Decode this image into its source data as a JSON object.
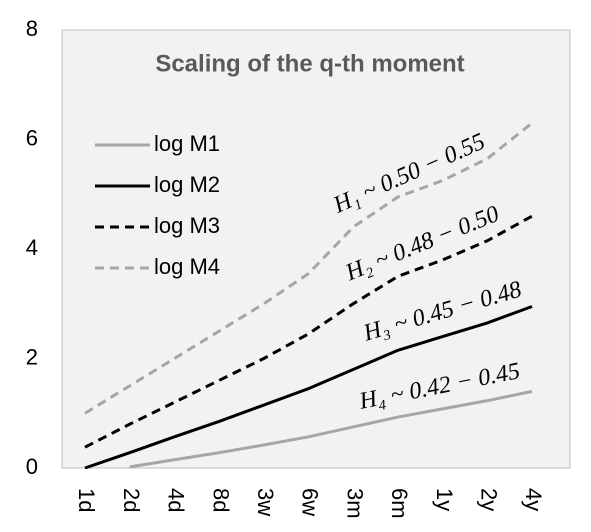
{
  "chart_data": {
    "type": "line",
    "title": "Scaling of the q-th moment",
    "categories": [
      "1d",
      "2d",
      "4d",
      "8d",
      "3w",
      "6w",
      "3m",
      "6m",
      "1y",
      "2y",
      "4y"
    ],
    "series": [
      {
        "name": "log M1",
        "color": "#a6a6a6",
        "line_style": "solid",
        "values": [
          null,
          0.02,
          0.15,
          0.28,
          0.42,
          0.57,
          0.75,
          0.93,
          1.08,
          1.23,
          1.4
        ]
      },
      {
        "name": "log M2",
        "color": "#000000",
        "line_style": "solid",
        "values": [
          0,
          0.28,
          0.57,
          0.85,
          1.15,
          1.45,
          1.8,
          2.15,
          2.4,
          2.65,
          2.95
        ]
      },
      {
        "name": "log M3",
        "color": "#000000",
        "line_style": "dashed",
        "values": [
          0.38,
          0.8,
          1.2,
          1.6,
          2.0,
          2.45,
          3.0,
          3.5,
          3.8,
          4.15,
          4.6
        ]
      },
      {
        "name": "log M4",
        "color": "#a6a6a6",
        "line_style": "dashed",
        "values": [
          1.0,
          1.5,
          2.0,
          2.5,
          3.0,
          3.55,
          4.4,
          4.95,
          5.25,
          5.65,
          6.3
        ]
      }
    ],
    "annotations": [
      "H₁ ~ 0.50 − 0.55",
      "H₂ ~ 0.48 − 0.50",
      "H₃ ~ 0.45 − 0.48",
      "H₄ ~ 0.42 − 0.45"
    ],
    "ylim": [
      0,
      8
    ],
    "yticks": [
      0,
      2,
      4,
      6,
      8
    ],
    "grid": false,
    "legend": "upper left"
  }
}
